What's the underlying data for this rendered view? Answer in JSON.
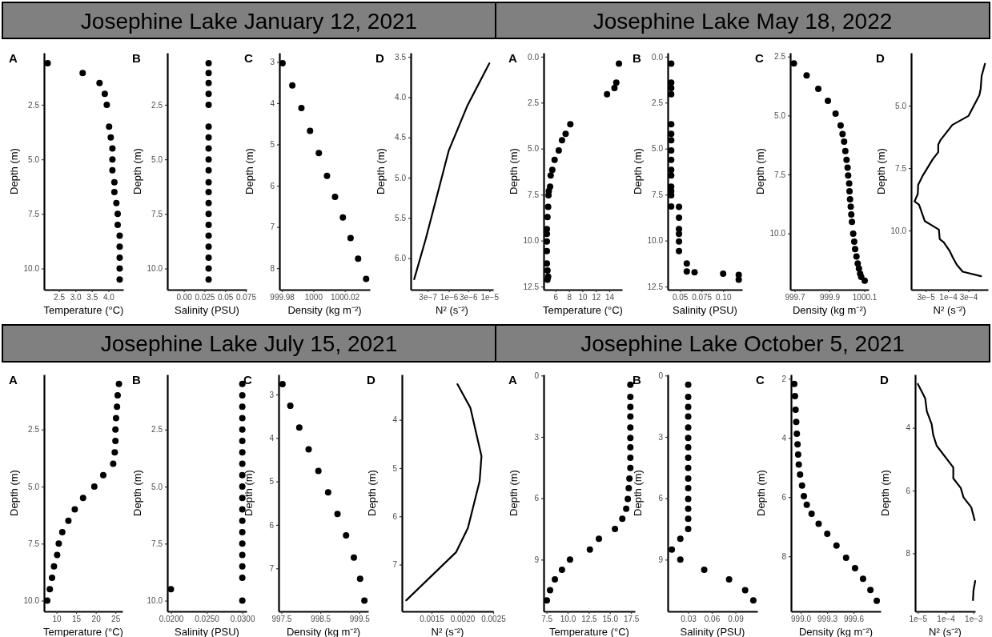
{
  "chart_data": [
    {
      "type": "scatter",
      "title": "Josephine Lake January 12, 2021",
      "annotations": [
        "A"
      ],
      "xlabel": "Temperature (°C)",
      "ylabel": "Depth (m)",
      "color": "#000000",
      "marker": "circle",
      "x": [
        2.16,
        3.22,
        3.73,
        3.89,
        3.95,
        4.02,
        4.07,
        4.12,
        4.12,
        4.12,
        4.18,
        4.18,
        4.24,
        4.28,
        4.28,
        4.34,
        4.34,
        4.34,
        4.34,
        4.34
      ],
      "values": [
        0.6,
        1.05,
        1.5,
        2.0,
        2.5,
        3.5,
        4.0,
        4.5,
        5.0,
        5.5,
        6.05,
        6.5,
        7.0,
        7.5,
        8.0,
        8.5,
        9.0,
        9.5,
        10.0,
        10.5
      ],
      "xlim": [
        2.05,
        4.45
      ],
      "ylim": [
        10.97,
        0.12
      ],
      "xticks": [
        2.5,
        {
          "value": 3,
          "label": "3.0"
        },
        3.5,
        {
          "value": 4,
          "label": "4.0"
        }
      ],
      "yticks": [
        2.5,
        {
          "value": 5,
          "label": "5.0"
        },
        7.5,
        {
          "value": 10,
          "label": "10.0"
        }
      ]
    },
    {
      "type": "scatter",
      "annotations": [
        "B"
      ],
      "xlabel": "Salinity (PSU)",
      "ylabel": "Depth (m)",
      "color": "#000000",
      "marker": "circle",
      "x": [
        0.03,
        0.03,
        0.03,
        0.03,
        0.03,
        0.03,
        0.03,
        0.03,
        0.03,
        0.03,
        0.03,
        0.03,
        0.03,
        0.03,
        0.03,
        0.03,
        0.03,
        0.03,
        0.03,
        0.03
      ],
      "values": [
        0.6,
        1.05,
        1.5,
        2.0,
        2.5,
        3.5,
        4.0,
        4.5,
        5.0,
        5.5,
        6.05,
        6.5,
        7.0,
        7.5,
        8.0,
        8.5,
        9.0,
        9.5,
        10.0,
        10.5
      ],
      "xlim": [
        -0.02,
        0.076
      ],
      "ylim": [
        10.97,
        0.12
      ],
      "xticks": [
        {
          "value": 0,
          "label": "0.00"
        },
        0.025,
        0.05,
        0.075
      ],
      "yticks": [
        2.5,
        {
          "value": 5,
          "label": "5.0"
        },
        7.5,
        {
          "value": 10,
          "label": "10.0"
        }
      ]
    },
    {
      "type": "scatter",
      "annotations": [
        "C"
      ],
      "xlabel": "Density (kg m⁻²)",
      "ylabel": "Depth (m)",
      "color": "#000000",
      "marker": "circle",
      "x": [
        999.9804,
        999.9866,
        999.9924,
        999.9979,
        1000.0035,
        1000.0087,
        1000.0138,
        1000.0188,
        1000.0237,
        1000.0285,
        1000.0336
      ],
      "values": [
        3.03,
        3.57,
        4.12,
        4.67,
        5.21,
        5.76,
        6.27,
        6.77,
        7.27,
        7.77,
        8.26
      ],
      "xlim": [
        999.9784,
        1000.036
      ],
      "ylim": [
        8.52,
        2.78
      ],
      "xticks": [
        999.98,
        1000,
        1000.02
      ],
      "yticks": [
        3,
        4,
        5,
        6,
        7,
        8
      ]
    },
    {
      "type": "line",
      "annotations": [
        "D"
      ],
      "xlabel": "N² (s⁻²)",
      "ylabel": "Depth (m)",
      "color": "#000000",
      "log": "x",
      "x": [
        1.4e-07,
        2.7e-07,
        1e-06,
        2.9e-06,
        1e-05
      ],
      "values": [
        6.26,
        5.76,
        4.66,
        4.1,
        3.58
      ],
      "xlim": [
        1.15e-07,
        1.24e-05
      ],
      "ylim": [
        6.39,
        3.45
      ],
      "xticks": [
        {
          "value": 3e-07,
          "label": "3e−7"
        },
        {
          "value": 1e-06,
          "label": "1e−6"
        },
        {
          "value": 3e-06,
          "label": "3e−6"
        },
        {
          "value": 1e-05,
          "label": "1e−5"
        }
      ],
      "yticks": [
        3.5,
        {
          "value": 4,
          "label": "4.0"
        },
        4.5,
        {
          "value": 5,
          "label": "5.0"
        },
        5.5,
        {
          "value": 6,
          "label": "6.0"
        }
      ]
    },
    {
      "type": "scatter",
      "title": "Josephine Lake May 18, 2022",
      "annotations": [
        "A"
      ],
      "xlabel": "Temperature (°C)",
      "ylabel": "Depth (m)",
      "color": "#000000",
      "marker": "circle",
      "x": [
        15.43,
        15.04,
        14.76,
        13.66,
        8.2,
        7.5,
        6.96,
        6.48,
        5.86,
        5.52,
        5.28,
        5.19,
        5.0,
        4.95,
        4.9,
        4.8,
        4.71,
        4.71,
        4.71,
        4.71,
        4.71,
        4.8,
        4.9,
        4.8
      ],
      "values": [
        0.38,
        1.41,
        1.71,
        2.04,
        3.67,
        4.2,
        4.54,
        5.1,
        5.61,
        6.15,
        6.46,
        7.07,
        7.31,
        7.54,
        8.17,
        8.72,
        9.37,
        9.63,
        10.05,
        10.57,
        11.25,
        11.63,
        11.96,
        12.13
      ],
      "xlim": [
        4.23,
        15.9
      ],
      "ylim": [
        12.67,
        -0.21
      ],
      "xticks": [
        6,
        8,
        10,
        12,
        14
      ],
      "yticks": [
        {
          "value": 0,
          "label": "0.0"
        },
        2.5,
        {
          "value": 5,
          "label": "5.0"
        },
        7.5,
        {
          "value": 10,
          "label": "10.0"
        },
        12.5
      ]
    },
    {
      "type": "scatter",
      "annotations": [
        "B"
      ],
      "xlabel": "Salinity (PSU)",
      "ylabel": "Depth (m)",
      "color": "#000000",
      "marker": "circle",
      "x": [
        0.04,
        0.04,
        0.04,
        0.04,
        0.04,
        0.04,
        0.04,
        0.04,
        0.04,
        0.04,
        0.04,
        0.04,
        0.04,
        0.04,
        0.04,
        0.049,
        0.049,
        0.049,
        0.049,
        0.049,
        0.049,
        0.058,
        0.058,
        0.067,
        0.1,
        0.118,
        0.118
      ],
      "values": [
        0.38,
        1.41,
        1.71,
        2.04,
        3.67,
        4.2,
        4.54,
        5.1,
        5.61,
        6.15,
        6.46,
        7.07,
        7.31,
        7.54,
        8.15,
        8.17,
        8.75,
        9.37,
        9.63,
        10.05,
        10.57,
        11.25,
        11.68,
        11.72,
        11.8,
        11.87,
        12.13
      ],
      "xlim": [
        0.036,
        0.122
      ],
      "ylim": [
        12.67,
        -0.21
      ],
      "xticks": [
        0.05,
        0.075,
        {
          "value": 0.1,
          "label": "0.10"
        }
      ],
      "yticks": [
        {
          "value": 0,
          "label": "0.0"
        },
        2.5,
        {
          "value": 5,
          "label": "5.0"
        },
        7.5,
        {
          "value": 10,
          "label": "10.0"
        },
        12.5
      ]
    },
    {
      "type": "scatter",
      "annotations": [
        "C"
      ],
      "xlabel": "Density (kg m⁻²)",
      "ylabel": "Depth (m)",
      "color": "#000000",
      "marker": "circle",
      "x": [
        999.696,
        999.769,
        999.836,
        999.891,
        999.935,
        999.964,
        999.975,
        999.984,
        999.991,
        999.998,
        1000.004,
        1000.007,
        1000.013,
        1000.015,
        1000.018,
        1000.022,
        1000.025,
        1000.029,
        1000.036,
        1000.042,
        1000.047,
        1000.055,
        1000.062,
        1000.069,
        1000.076,
        1000.082,
        1000.102
      ],
      "values": [
        2.79,
        3.3,
        3.87,
        4.38,
        4.92,
        5.42,
        5.79,
        6.11,
        6.51,
        6.88,
        7.21,
        7.54,
        7.88,
        8.21,
        8.55,
        8.87,
        9.2,
        9.51,
        10.01,
        10.35,
        10.67,
        10.98,
        11.28,
        11.49,
        11.71,
        11.85,
        12.01
      ],
      "xlim": [
        999.675,
        1000.125
      ],
      "ylim": [
        12.39,
        2.34
      ],
      "xticks": [
        999.7,
        999.9,
        1000.1
      ],
      "yticks": [
        2.5,
        {
          "value": 5,
          "label": "5.0"
        },
        7.5,
        {
          "value": 10,
          "label": "10.0"
        }
      ]
    },
    {
      "type": "line",
      "annotations": [
        "D"
      ],
      "xlabel": "N² (s⁻²)",
      "ylabel": "Depth (m)",
      "color": "#000000",
      "log": "x",
      "x": [
        0.00073,
        0.00061,
        0.00058,
        0.00054,
        0.0003,
        0.000126,
        6.7e-05,
        5.9e-05,
        5.9e-05,
        4.4e-05,
        2.6e-05,
        2e-05,
        1.96e-05,
        1.65e-05,
        2.1e-05,
        2.85e-05,
        6.1e-05,
        6.4e-05,
        7.9e-05,
        0.00011,
        0.00013,
        0.00016,
        0.00022,
        0.00059
      ],
      "values": [
        3.32,
        3.81,
        4.32,
        4.58,
        5.41,
        5.77,
        6.37,
        6.56,
        6.86,
        7.14,
        7.78,
        8.17,
        8.53,
        8.83,
        8.97,
        9.62,
        9.96,
        10.35,
        10.47,
        10.83,
        11.09,
        11.37,
        11.65,
        11.83
      ],
      "xlim": [
        1.37e-05,
        0.00086
      ],
      "ylim": [
        12.37,
        2.88
      ],
      "xticks": [
        {
          "value": 3e-05,
          "label": "3e−5"
        },
        {
          "value": 0.0001,
          "label": "1e−4"
        },
        {
          "value": 0.0003,
          "label": "3e−4"
        }
      ],
      "yticks": [
        {
          "value": 5,
          "label": "5.0"
        },
        7.5,
        {
          "value": 10,
          "label": "10.0"
        }
      ]
    },
    {
      "type": "scatter",
      "title": "Josephine Lake July 15, 2021",
      "annotations": [
        "A"
      ],
      "xlabel": "Temperature (°C)",
      "ylabel": "Depth (m)",
      "color": "#000000",
      "marker": "circle",
      "x": [
        25.9,
        25.57,
        25.4,
        25.16,
        25.0,
        25.0,
        24.83,
        24.43,
        21.9,
        19.62,
        16.76,
        14.65,
        13.02,
        11.47,
        10.57,
        10.16,
        9.35,
        8.86,
        8.29,
        7.64
      ],
      "values": [
        0.5,
        1.0,
        1.5,
        2.0,
        2.5,
        3.0,
        3.5,
        4.0,
        4.5,
        5.0,
        5.5,
        6.0,
        6.5,
        7.0,
        7.5,
        8.0,
        8.5,
        9.0,
        9.5,
        10.0
      ],
      "xlim": [
        6.82,
        26.8
      ],
      "ylim": [
        10.47,
        0.09
      ],
      "xticks": [
        10,
        15,
        20,
        25
      ],
      "yticks": [
        2.5,
        {
          "value": 5,
          "label": "5.0"
        },
        7.5,
        {
          "value": 10,
          "label": "10.0"
        }
      ]
    },
    {
      "type": "scatter",
      "annotations": [
        "B"
      ],
      "xlabel": "Salinity (PSU)",
      "ylabel": "Depth (m)",
      "color": "#000000",
      "marker": "circle",
      "x": [
        0.03,
        0.03,
        0.03,
        0.03,
        0.03,
        0.03,
        0.03,
        0.03,
        0.03,
        0.03,
        0.03,
        0.03,
        0.03,
        0.03,
        0.03,
        0.03,
        0.03,
        0.03,
        0.02,
        0.03
      ],
      "values": [
        0.5,
        1.0,
        1.5,
        2.0,
        2.5,
        3.0,
        3.5,
        4.0,
        4.5,
        5.0,
        5.5,
        6.0,
        6.5,
        7.0,
        7.5,
        8.0,
        8.5,
        9.0,
        9.5,
        10.0
      ],
      "xlim": [
        0.0195,
        0.0306
      ],
      "ylim": [
        10.47,
        0.09
      ],
      "xticks": [
        {
          "value": 0.02,
          "label": "0.0200"
        },
        {
          "value": 0.025,
          "label": "0.0250"
        },
        {
          "value": 0.03,
          "label": "0.0300"
        }
      ],
      "yticks": [
        2.5,
        {
          "value": 5,
          "label": "5.0"
        },
        7.5,
        {
          "value": 10,
          "label": "10.0"
        }
      ]
    },
    {
      "type": "scatter",
      "annotations": [
        "C"
      ],
      "xlabel": "Density (kg m⁻²)",
      "ylabel": "Depth (m)",
      "color": "#000000",
      "marker": "circle",
      "x": [
        997.53,
        997.73,
        997.96,
        998.2,
        998.45,
        998.7,
        998.94,
        999.16,
        999.36,
        999.52,
        999.63
      ],
      "values": [
        2.76,
        3.26,
        3.76,
        4.26,
        4.76,
        5.25,
        5.75,
        6.24,
        6.75,
        7.24,
        7.74
      ],
      "xlim": [
        997.43,
        999.73
      ],
      "ylim": [
        7.99,
        2.54
      ],
      "xticks": [
        997.5,
        998.5,
        999.5
      ],
      "yticks": [
        3,
        4,
        5,
        6,
        7
      ]
    },
    {
      "type": "line",
      "annotations": [
        "D"
      ],
      "xlabel": "N² (s⁻²)",
      "ylabel": "Depth (m)",
      "color": "#000000",
      "x": [
        0.00192,
        0.00213,
        0.00231,
        0.00228,
        0.00209,
        0.0019,
        0.00109
      ],
      "values": [
        3.26,
        3.75,
        4.75,
        5.27,
        6.24,
        6.74,
        7.74
      ],
      "xlim": [
        0.00102,
        0.0025
      ],
      "ylim": [
        7.97,
        3.06
      ],
      "xticks": [
        0.0015,
        {
          "value": 0.002,
          "label": "0.0020"
        },
        0.0025
      ],
      "yticks": [
        4,
        5,
        6,
        7
      ]
    },
    {
      "type": "scatter",
      "title": "Josephine Lake October 5, 2021",
      "annotations": [
        "A"
      ],
      "xlabel": "Temperature (°C)",
      "ylabel": "Depth (m)",
      "color": "#000000",
      "marker": "circle",
      "x": [
        17.42,
        17.42,
        17.42,
        17.42,
        17.42,
        17.42,
        17.42,
        17.42,
        17.42,
        17.31,
        17.23,
        17.12,
        16.93,
        16.47,
        15.6,
        13.7,
        12.63,
        10.28,
        9.33,
        8.49,
        7.92,
        7.54
      ],
      "values": [
        0.45,
        1.05,
        1.53,
        2.0,
        2.54,
        3.05,
        3.51,
        4.02,
        4.52,
        5.04,
        5.51,
        6.03,
        6.51,
        7.0,
        7.5,
        7.98,
        8.51,
        9.0,
        9.5,
        9.97,
        10.49,
        10.99
      ],
      "xlim": [
        7.16,
        17.96
      ],
      "ylim": [
        11.53,
        -0.05
      ],
      "xticks": [
        7.5,
        {
          "value": 10,
          "label": "10.0"
        },
        12.5,
        {
          "value": 15,
          "label": "15.0"
        },
        17.5
      ],
      "yticks": [
        0,
        3,
        6,
        9
      ]
    },
    {
      "type": "scatter",
      "annotations": [
        "B"
      ],
      "xlabel": "Salinity (PSU)",
      "ylabel": "Depth (m)",
      "color": "#000000",
      "marker": "circle",
      "x": [
        0.03,
        0.03,
        0.03,
        0.03,
        0.03,
        0.03,
        0.03,
        0.03,
        0.03,
        0.03,
        0.03,
        0.03,
        0.03,
        0.03,
        0.03,
        0.02,
        0.0092,
        0.02,
        0.0504,
        0.082,
        0.1024,
        0.1128
      ],
      "values": [
        0.45,
        1.05,
        1.53,
        2.0,
        2.54,
        3.05,
        3.51,
        4.02,
        4.52,
        5.04,
        5.51,
        6.03,
        6.51,
        7.0,
        7.5,
        7.98,
        8.51,
        9.0,
        9.5,
        9.97,
        10.49,
        10.99
      ],
      "xlim": [
        0.004,
        0.118
      ],
      "ylim": [
        11.53,
        -0.05
      ],
      "xticks": [
        0.03,
        0.06,
        0.09
      ],
      "yticks": [
        0,
        3,
        6,
        9
      ]
    },
    {
      "type": "scatter",
      "annotations": [
        "C"
      ],
      "xlabel": "Density (kg m⁻²)",
      "ylabel": "Depth (m)",
      "color": "#000000",
      "marker": "circle",
      "x": [
        998.927,
        998.935,
        998.942,
        998.949,
        998.956,
        998.964,
        998.971,
        998.978,
        998.993,
        999.015,
        999.036,
        999.069,
        999.124,
        999.204,
        999.302,
        999.407,
        999.516,
        999.618,
        999.709,
        999.793,
        999.865
      ],
      "values": [
        2.18,
        2.59,
        3.05,
        3.46,
        3.86,
        4.22,
        4.56,
        4.9,
        5.24,
        5.61,
        5.97,
        6.26,
        6.56,
        6.9,
        7.24,
        7.64,
        8.05,
        8.4,
        8.76,
        9.14,
        9.5
      ],
      "xlim": [
        998.89,
        999.91
      ],
      "ylim": [
        9.86,
        1.86
      ],
      "xticks": [
        {
          "value": 999,
          "label": "999.0"
        },
        999.3,
        999.6
      ],
      "yticks": [
        2,
        4,
        6,
        8
      ]
    },
    {
      "type": "line",
      "annotations": [
        "D"
      ],
      "xlabel": "N² (s⁻²)",
      "ylabel": "Depth (m)",
      "color": "#000000",
      "log": "x",
      "x": [
        1e-05,
        1.84e-05,
        2.1e-05,
        3.13e-05,
        3.58e-05,
        4.76e-05,
        0.000188,
        0.000188,
        0.00035,
        0.00044,
        0.00083,
        0.0011,
        null,
        0.00115,
        0.001,
        0.00096
      ],
      "values": [
        2.6,
        3.06,
        3.47,
        3.88,
        4.23,
        4.57,
        5.26,
        5.61,
        5.92,
        6.22,
        6.53,
        6.94,
        null,
        8.88,
        9.18,
        9.49
      ],
      "xlim": [
        8e-06,
        0.00115
      ],
      "ylim": [
        9.85,
        2.3
      ],
      "xticks": [
        {
          "value": 1e-05,
          "label": "1e−5"
        },
        {
          "value": 0.0001,
          "label": "1e−4"
        },
        {
          "value": 0.001,
          "label": "1e−3"
        }
      ],
      "yticks": [
        4,
        6,
        8
      ]
    }
  ]
}
